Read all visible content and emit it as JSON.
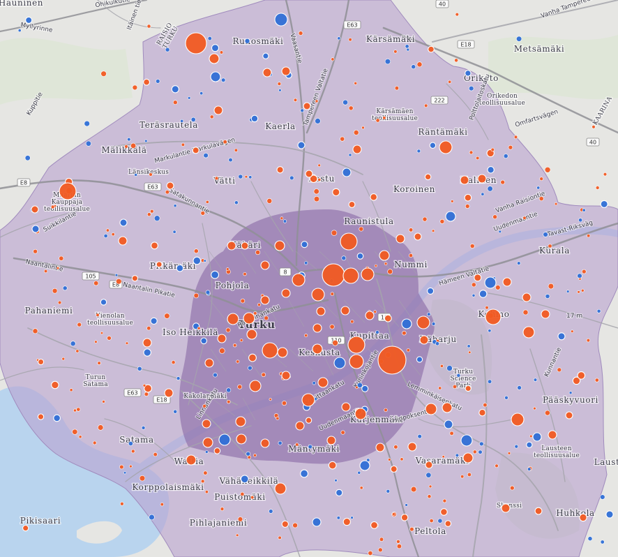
{
  "colors": {
    "outer_zone": "#b9a3d0",
    "inner_zone": "#8a6aa6",
    "water": "#b9d4ee",
    "orange_point": "#f15a22",
    "blue_point": "#2f6fd6",
    "road": "#a5a5ab",
    "major_road": "#8f8f95"
  },
  "map": {
    "city_label": "Turku",
    "places": [
      {
        "name": "Hauninen",
        "size": "normal"
      },
      {
        "name": "Runosmäki",
        "size": "normal"
      },
      {
        "name": "Kärsämäki",
        "size": "normal"
      },
      {
        "name": "Metsämäki",
        "size": "normal"
      },
      {
        "name": "Oriketo",
        "size": "normal"
      },
      {
        "name": "Orikedon teollisuusalue",
        "size": "small"
      },
      {
        "name": "Teräsrautela",
        "size": "normal"
      },
      {
        "name": "Kaerla",
        "size": "normal"
      },
      {
        "name": "Kärsämäen teollisuusalue",
        "size": "small"
      },
      {
        "name": "Räntämäki",
        "size": "normal"
      },
      {
        "name": "Mälikkälä",
        "size": "normal"
      },
      {
        "name": "Länsikeskus",
        "size": "small"
      },
      {
        "name": "Vätti",
        "size": "normal"
      },
      {
        "name": "Kastu",
        "size": "normal"
      },
      {
        "name": "Koroinen",
        "size": "normal"
      },
      {
        "name": "Halinen",
        "size": "normal"
      },
      {
        "name": "Maarian Kauppaja teollisuusalue",
        "size": "small"
      },
      {
        "name": "Raunistula",
        "size": "normal"
      },
      {
        "name": "Kähäri",
        "size": "normal"
      },
      {
        "name": "Nummi",
        "size": "normal"
      },
      {
        "name": "Kurala",
        "size": "normal"
      },
      {
        "name": "Pitkämäki",
        "size": "normal"
      },
      {
        "name": "Pohjola",
        "size": "normal"
      },
      {
        "name": "Kohmo",
        "size": "normal"
      },
      {
        "name": "Pahaniemi",
        "size": "normal"
      },
      {
        "name": "Vienolan teollisuusalue",
        "size": "small"
      },
      {
        "name": "Iso Heikkilä",
        "size": "normal"
      },
      {
        "name": "Keskusta",
        "size": "normal"
      },
      {
        "name": "Itäharju",
        "size": "normal"
      },
      {
        "name": "Kupittaa",
        "size": "normal"
      },
      {
        "name": "Turku Science Park",
        "size": "small"
      },
      {
        "name": "Turun Satama",
        "size": "small"
      },
      {
        "name": "Kakolanmäki",
        "size": "small"
      },
      {
        "name": "Pääskyvuori",
        "size": "normal"
      },
      {
        "name": "Satama",
        "size": "normal"
      },
      {
        "name": "Kurjenmäki",
        "size": "normal"
      },
      {
        "name": "Lausteen teollisuusalue",
        "size": "small"
      },
      {
        "name": "Mäntymäki",
        "size": "normal"
      },
      {
        "name": "Vasaramäki",
        "size": "normal"
      },
      {
        "name": "Laust",
        "size": "normal"
      },
      {
        "name": "Wattia",
        "size": "normal"
      },
      {
        "name": "Vähäheikkilä",
        "size": "normal"
      },
      {
        "name": "Korppolaismäki",
        "size": "normal"
      },
      {
        "name": "Puistomäki",
        "size": "normal"
      },
      {
        "name": "Pihlajaniemi",
        "size": "normal"
      },
      {
        "name": "Skanssi",
        "size": "small"
      },
      {
        "name": "Huhkola",
        "size": "normal"
      },
      {
        "name": "Pikisaari",
        "size": "normal"
      },
      {
        "name": "Peltola",
        "size": "normal"
      },
      {
        "name": "RAISIO TURKU",
        "size": "small"
      },
      {
        "name": "KAARINA",
        "size": "small"
      }
    ],
    "roads": [
      "Ohikulkutie",
      "Itäinen tie",
      "Myllyrinne",
      "Kuppitie",
      "Vanha Tampereentie",
      "Vaasantie",
      "Tampereen Valtatie",
      "Omfartsvägen",
      "Polttolaitoskatu",
      "Markulantie Markulavägen",
      "Satakunnantie",
      "Suikkilantie",
      "Naantalintie",
      "Naantalin Pikatie",
      "Ratapihankatu",
      "Uudenmaantie",
      "Hämeen Valtatie",
      "Tavast-Riksväg",
      "Vanha Raisiontie",
      "Linnankatu",
      "Lemminkäisenkatu",
      "Hippoksentie",
      "Kuninkojantie",
      "Kupittaankatu",
      "Kunnantie",
      "Uudenmaantie"
    ],
    "shields": [
      "40",
      "E63",
      "E18",
      "222",
      "40",
      "E8",
      "E63",
      "105",
      "E8",
      "8",
      "10",
      "110",
      "E18",
      "E63"
    ],
    "scale_fragment": "17 m"
  }
}
